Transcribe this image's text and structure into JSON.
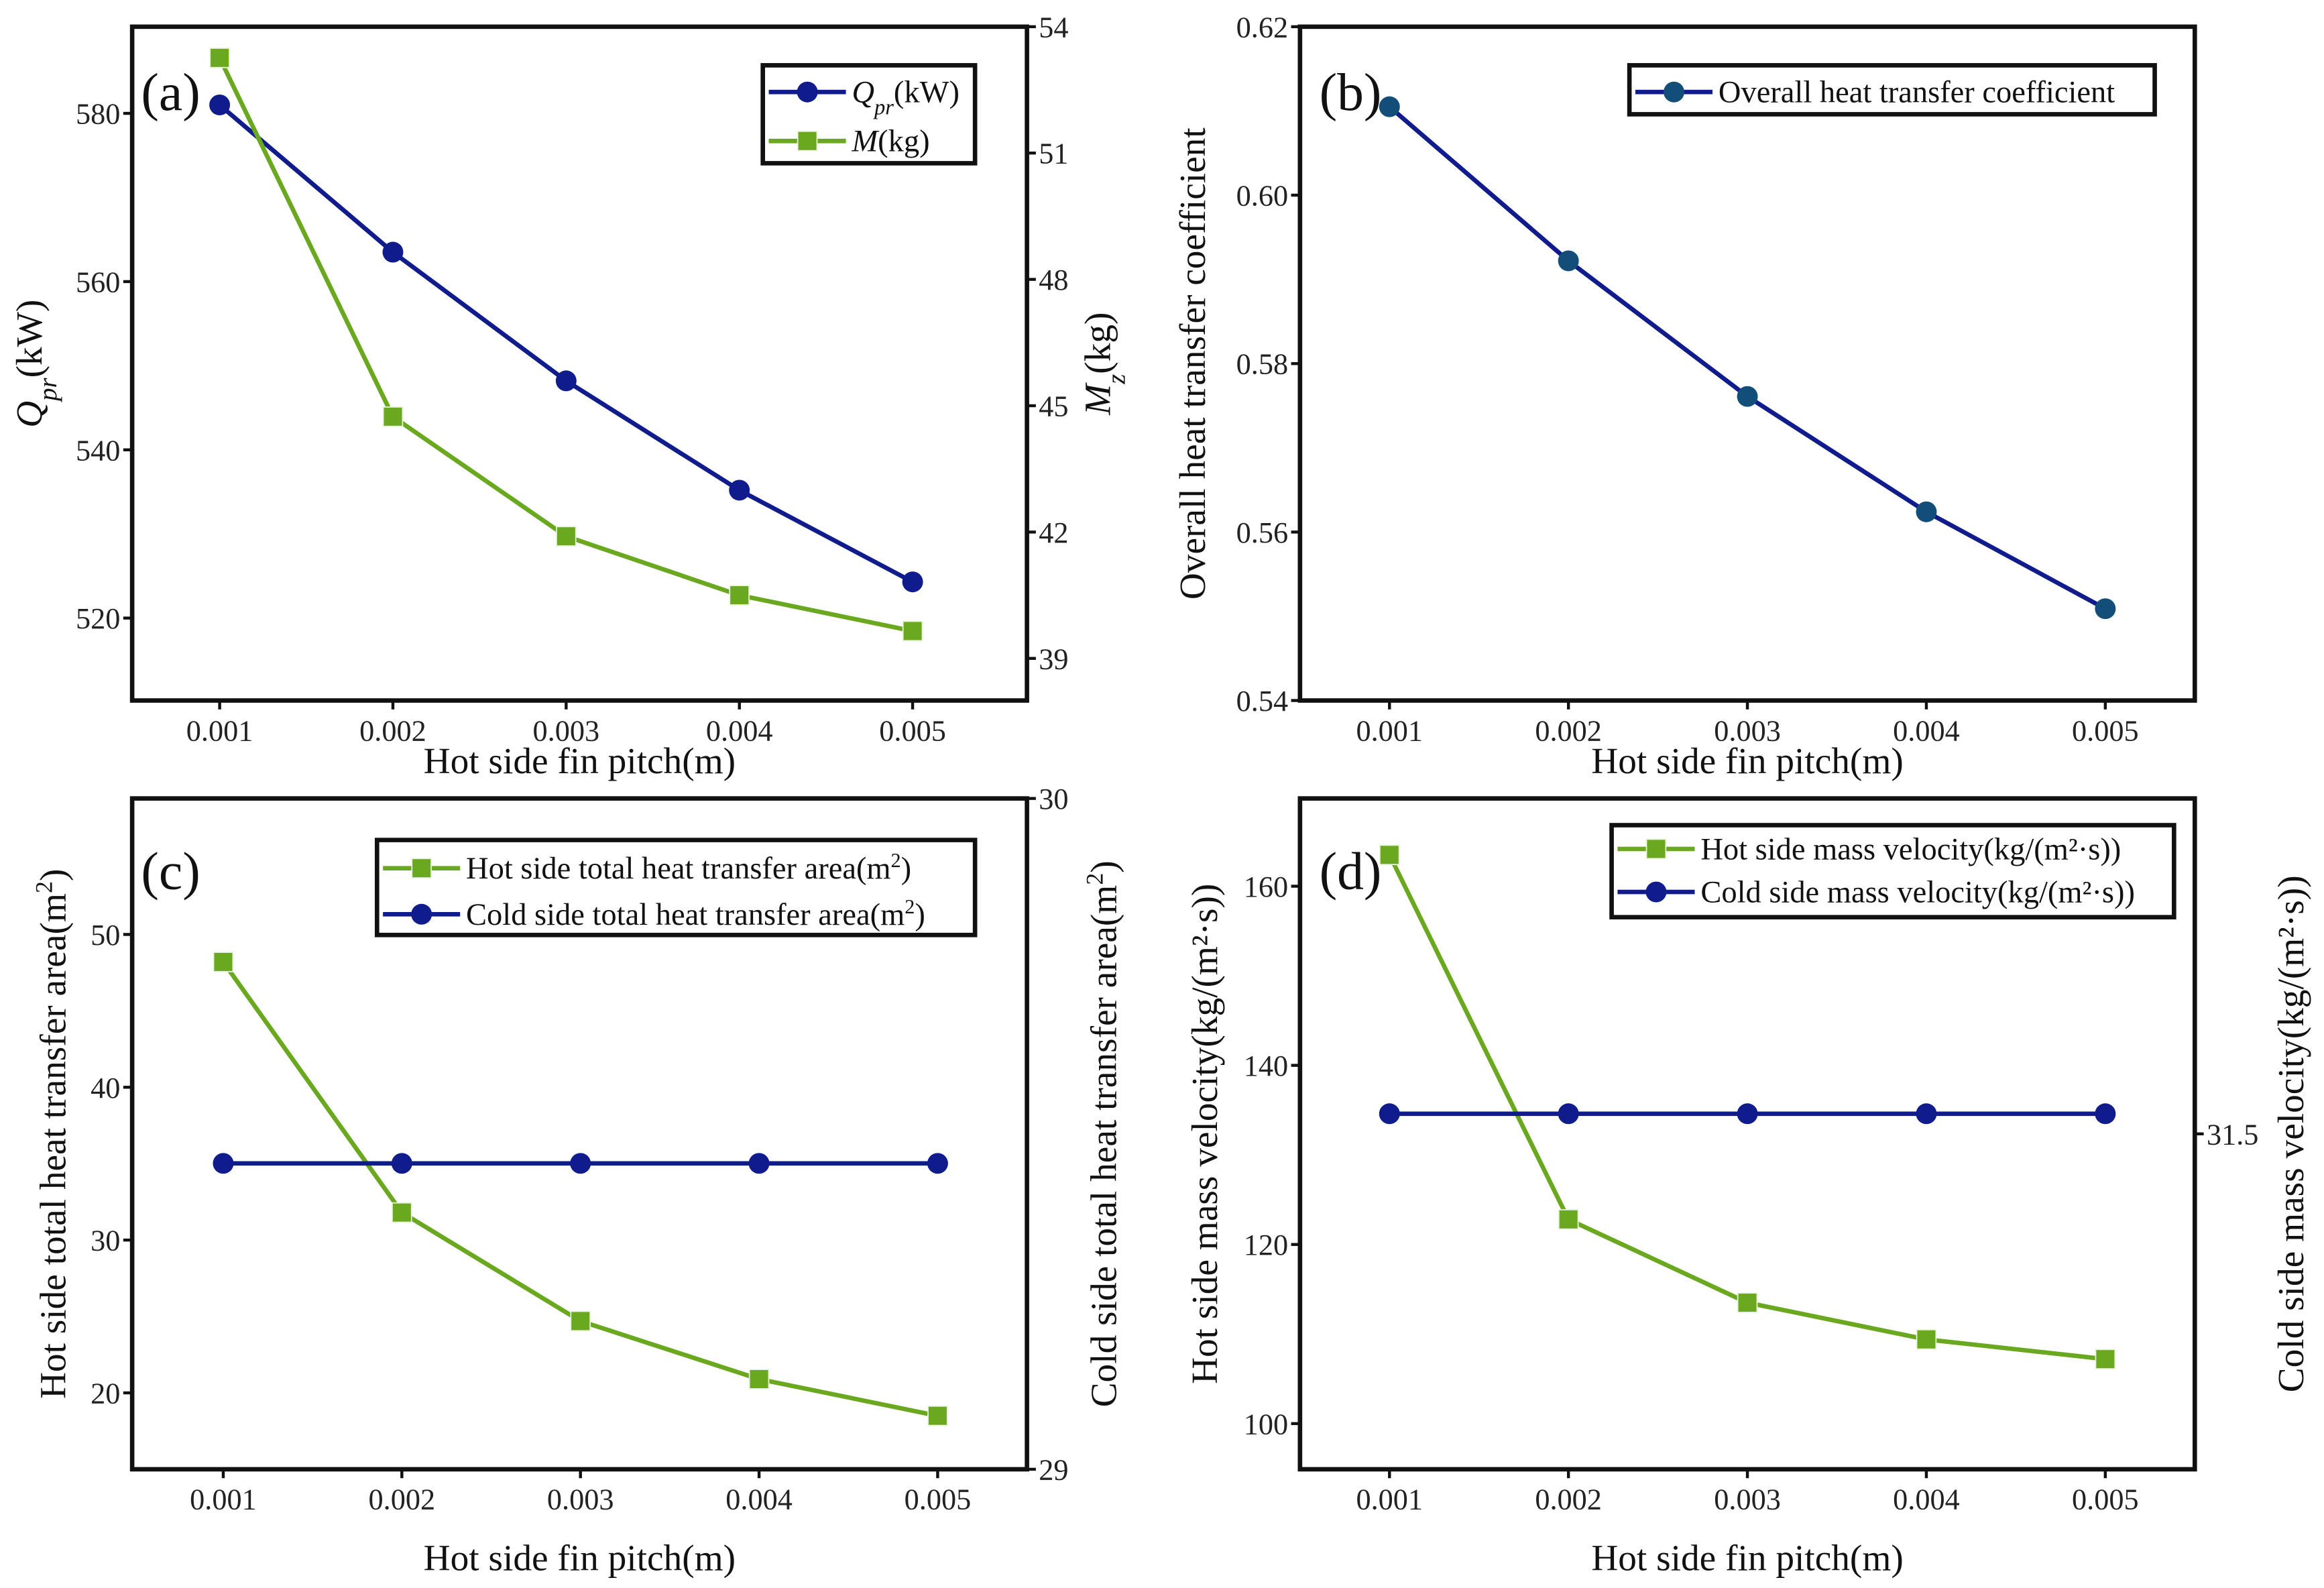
{
  "colors": {
    "navy": "#101c8c",
    "green": "#6aa820",
    "teal": "#124e78",
    "axis": "#111111"
  },
  "chart_data": [
    {
      "type": "line",
      "panel_label": "(a)",
      "x": [
        0.001,
        0.002,
        0.003,
        0.004,
        0.005
      ],
      "x_tick_labels": [
        "0.001",
        "0.002",
        "0.003",
        "0.004",
        "0.005"
      ],
      "xlim": [
        0.000495,
        0.00566
      ],
      "xlabel": [
        [
          "Hot side fin pitch(m)",
          ""
        ]
      ],
      "ylabel": [
        [
          "Q",
          "i"
        ],
        [
          "pr",
          "isub"
        ],
        [
          "(kW)",
          ""
        ]
      ],
      "ylim": [
        510.2,
        590.3
      ],
      "y_ticks": [
        520,
        540,
        560,
        580
      ],
      "y_tick_labels": [
        "520",
        "540",
        "560",
        "580"
      ],
      "y2label": [
        [
          "M",
          "i"
        ],
        [
          "z",
          "isub"
        ],
        [
          "(kg)",
          ""
        ]
      ],
      "y2lim": [
        38.0,
        54.0
      ],
      "y2_ticks": [
        39,
        42,
        45,
        48,
        51,
        54
      ],
      "y2_tick_labels": [
        "39",
        "42",
        "45",
        "48",
        "51",
        "54"
      ],
      "legend_placement": "top-right",
      "series": [
        {
          "name": [
            [
              "Q",
              "i"
            ],
            [
              "pr",
              "isub"
            ],
            [
              "(kW)",
              ""
            ]
          ],
          "axis": "left",
          "marker": "circle",
          "color": "#101c8c",
          "marker_color": "#101c8c",
          "values": [
            581.0,
            563.5,
            548.2,
            535.2,
            524.3
          ]
        },
        {
          "name": [
            [
              "M",
              "i"
            ],
            [
              "(kg)",
              ""
            ]
          ],
          "axis": "right",
          "marker": "square",
          "color": "#6aa820",
          "marker_color": "#6aa820",
          "values": [
            53.26,
            44.74,
            41.9,
            40.5,
            39.65
          ]
        }
      ]
    },
    {
      "type": "line",
      "panel_label": "(b)",
      "x": [
        0.001,
        0.002,
        0.003,
        0.004,
        0.005
      ],
      "x_tick_labels": [
        "0.001",
        "0.002",
        "0.003",
        "0.004",
        "0.005"
      ],
      "xlim": [
        0.0005,
        0.0055
      ],
      "xlabel": [
        [
          "Hot side fin pitch(m)",
          ""
        ]
      ],
      "ylabel": [
        [
          "Overall heat transfer coefficient",
          ""
        ]
      ],
      "ylim": [
        0.54,
        0.62
      ],
      "y_ticks": [
        0.54,
        0.56,
        0.58,
        0.6,
        0.62
      ],
      "y_tick_labels": [
        "0.54",
        "0.56",
        "0.58",
        "0.60",
        "0.62"
      ],
      "legend_placement": "top-right",
      "series": [
        {
          "name": [
            [
              "Overall heat transfer coefficient",
              ""
            ]
          ],
          "axis": "left",
          "marker": "circle",
          "color": "#101c8c",
          "marker_color": "#124e78",
          "values": [
            0.6105,
            0.5922,
            0.5761,
            0.5624,
            0.5509
          ]
        }
      ]
    },
    {
      "type": "line",
      "panel_label": "(c)",
      "x": [
        0.001,
        0.002,
        0.003,
        0.004,
        0.005
      ],
      "x_tick_labels": [
        "0.001",
        "0.002",
        "0.003",
        "0.004",
        "0.005"
      ],
      "xlim": [
        0.00049,
        0.0055
      ],
      "xlabel": [
        [
          "Hot side fin pitch(m)",
          ""
        ]
      ],
      "ylabel": [
        [
          "Hot side total  heat transfer area(m",
          ""
        ],
        [
          "2",
          "sup"
        ],
        [
          ")",
          ""
        ]
      ],
      "ylim": [
        15.0,
        58.9
      ],
      "y_ticks": [
        20,
        30,
        40,
        50
      ],
      "y_tick_labels": [
        "20",
        "30",
        "40",
        "50"
      ],
      "y2label": [
        [
          "Cold side total  heat transfer area(m",
          ""
        ],
        [
          "2",
          "sup"
        ],
        [
          ")",
          ""
        ]
      ],
      "y2lim": [
        29,
        30
      ],
      "y2_ticks": [
        29,
        30
      ],
      "y2_tick_labels": [
        "29",
        "30"
      ],
      "legend_placement": "top-right",
      "series": [
        {
          "name": [
            [
              "Hot side total  heat transfer area(m",
              ""
            ],
            [
              "2",
              "sup"
            ],
            [
              ")",
              ""
            ]
          ],
          "axis": "left",
          "marker": "square",
          "color": "#6aa820",
          "marker_color": "#6aa820",
          "values": [
            48.2,
            31.8,
            24.7,
            20.9,
            18.5
          ]
        },
        {
          "name": [
            [
              "Cold side total  heat transfer area(m",
              ""
            ],
            [
              "2",
              "sup"
            ],
            [
              ")",
              ""
            ]
          ],
          "axis": "right",
          "marker": "circle",
          "color": "#101c8c",
          "marker_color": "#101c8c",
          "values": [
            29.456,
            29.456,
            29.456,
            29.456,
            29.456
          ]
        }
      ]
    },
    {
      "type": "line",
      "panel_label": "(d)",
      "x": [
        0.001,
        0.002,
        0.003,
        0.004,
        0.005
      ],
      "x_tick_labels": [
        "0.001",
        "0.002",
        "0.003",
        "0.004",
        "0.005"
      ],
      "xlim": [
        0.0005,
        0.0055
      ],
      "xlabel": [
        [
          "Hot side fin pitch(m)",
          ""
        ]
      ],
      "ylabel": [
        [
          "Hot side mass velocity(kg/(m²·s))",
          ""
        ]
      ],
      "ylim": [
        94.9,
        169.8
      ],
      "y_ticks": [
        100,
        120,
        140,
        160
      ],
      "y_tick_labels": [
        "100",
        "120",
        "140",
        "160"
      ],
      "y2label": [
        [
          "Cold side mass velocity(kg/(m²·s))",
          ""
        ]
      ],
      "y2lim": [
        31.45,
        31.55
      ],
      "y2_ticks": [
        31.5
      ],
      "y2_tick_labels": [
        "31.5"
      ],
      "legend_placement": "top-right",
      "series": [
        {
          "name": [
            [
              "Hot side mass velocity(kg/(m²·s))",
              ""
            ]
          ],
          "axis": "left",
          "marker": "square",
          "color": "#6aa820",
          "marker_color": "#6aa820",
          "values": [
            163.5,
            122.8,
            113.5,
            109.4,
            107.2
          ]
        },
        {
          "name": [
            [
              "Cold side mass velocity(kg/(m²·s))",
              ""
            ]
          ],
          "axis": "right",
          "marker": "circle",
          "color": "#101c8c",
          "marker_color": "#101c8c",
          "values": [
            31.503,
            31.503,
            31.503,
            31.503,
            31.503
          ]
        }
      ]
    }
  ]
}
